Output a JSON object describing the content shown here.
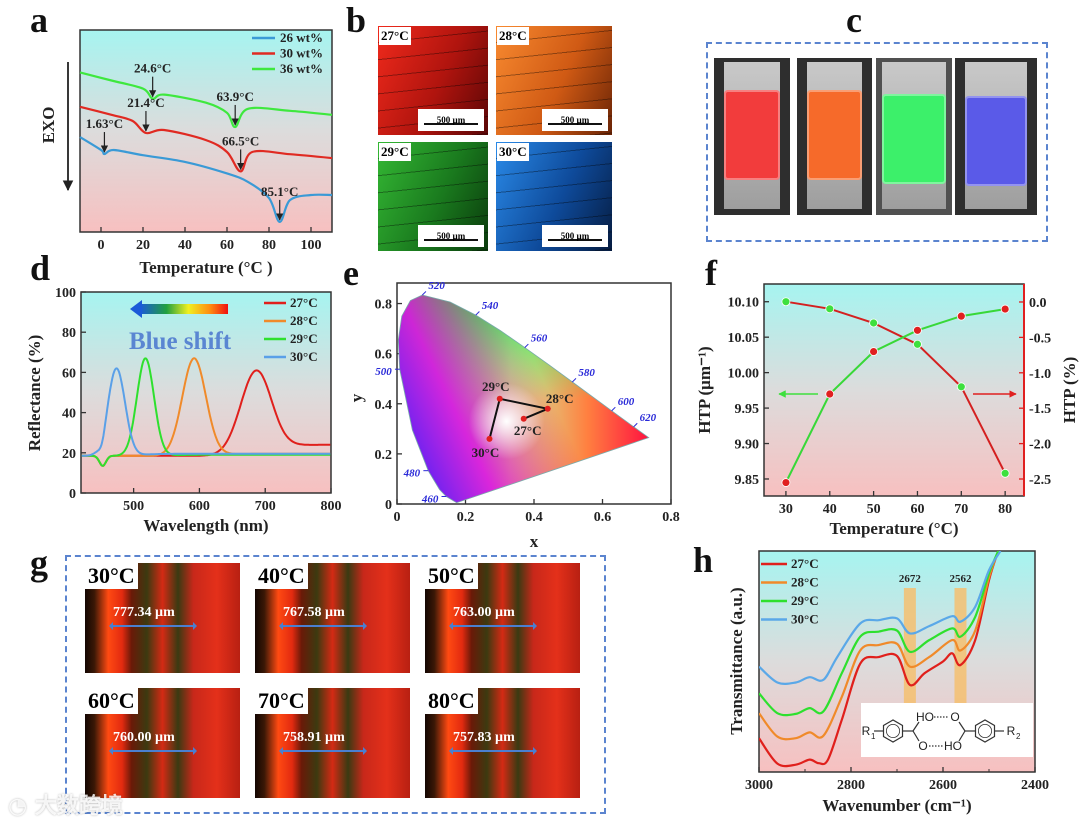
{
  "panel_labels": {
    "a": "a",
    "b": "b",
    "c": "c",
    "d": "d",
    "e": "e",
    "f": "f",
    "g": "g",
    "h": "h"
  },
  "panel_b": {
    "images": [
      {
        "label": "27°C",
        "scale_bar": "500 µm",
        "color": "#e0261c"
      },
      {
        "label": "28°C",
        "scale_bar": "500 µm",
        "color": "#ee7420"
      },
      {
        "label": "29°C",
        "scale_bar": "500 µm",
        "color": "#2aa42a"
      },
      {
        "label": "30°C",
        "scale_bar": "500 µm",
        "color": "#1c78d6"
      }
    ]
  },
  "panel_c": {
    "slides": [
      {
        "color": "#f23c3c"
      },
      {
        "color": "#f66a2a"
      },
      {
        "color": "#3cf06a"
      },
      {
        "color": "#5a5ae8"
      }
    ]
  },
  "panel_g": {
    "images": [
      {
        "label": "30°C",
        "measurement": "777.34 µm"
      },
      {
        "label": "40°C",
        "measurement": "767.58 µm"
      },
      {
        "label": "50°C",
        "measurement": "763.00 µm"
      },
      {
        "label": "60°C",
        "measurement": "760.00 µm"
      },
      {
        "label": "70°C",
        "measurement": "758.91 µm"
      },
      {
        "label": "80°C",
        "measurement": "757.83 µm"
      }
    ]
  },
  "watermark": "大数跨境",
  "chart_data": [
    {
      "panel": "a",
      "type": "line",
      "xlabel": "Temperature (°C )",
      "ylabel": "EXO",
      "xlim": [
        -10,
        110
      ],
      "ylim": [
        0,
        10
      ],
      "xticks": [
        "0",
        "20",
        "40",
        "60",
        "80",
        "100"
      ],
      "xtick_values": [
        0,
        20,
        40,
        60,
        80,
        100
      ],
      "legend": "top-right",
      "series": [
        {
          "name": "26 wt%",
          "color": "#3a9ad6",
          "points": [
            [
              -10,
              4.7
            ],
            [
              0,
              4.06
            ],
            [
              1.63,
              3.86
            ],
            [
              6,
              4.06
            ],
            [
              20,
              3.8
            ],
            [
              40,
              3.47
            ],
            [
              60,
              2.9
            ],
            [
              70,
              2.48
            ],
            [
              80,
              1.68
            ],
            [
              85.1,
              0.5
            ],
            [
              90,
              1.58
            ],
            [
              100,
              1.83
            ],
            [
              110,
              1.83
            ]
          ]
        },
        {
          "name": "30 wt%",
          "color": "#e02a22",
          "points": [
            [
              -10,
              6.2
            ],
            [
              5,
              5.8
            ],
            [
              15,
              5.5
            ],
            [
              21.4,
              4.9
            ],
            [
              30,
              5.05
            ],
            [
              50,
              4.55
            ],
            [
              60,
              3.96
            ],
            [
              66.5,
              3.0
            ],
            [
              72,
              3.96
            ],
            [
              90,
              3.85
            ],
            [
              110,
              3.66
            ]
          ]
        },
        {
          "name": "36 wt%",
          "color": "#3ee83e",
          "points": [
            [
              -10,
              7.9
            ],
            [
              5,
              7.5
            ],
            [
              20,
              7.1
            ],
            [
              24.6,
              6.6
            ],
            [
              30,
              6.8
            ],
            [
              50,
              6.4
            ],
            [
              60,
              5.9
            ],
            [
              63.9,
              5.2
            ],
            [
              70,
              6.1
            ],
            [
              90,
              6.0
            ],
            [
              110,
              5.8
            ]
          ]
        }
      ],
      "annotations": [
        {
          "text": "1.63°C",
          "x": 1.63,
          "y": 3.86
        },
        {
          "text": "21.4°C",
          "x": 21.4,
          "y": 4.9
        },
        {
          "text": "24.6°C",
          "x": 24.6,
          "y": 6.6
        },
        {
          "text": "63.9°C",
          "x": 63.9,
          "y": 5.2
        },
        {
          "text": "66.5°C",
          "x": 66.5,
          "y": 3.0
        },
        {
          "text": "85.1°C",
          "x": 85.1,
          "y": 0.5
        }
      ]
    },
    {
      "panel": "d",
      "type": "line",
      "xlabel": "Wavelength (nm)",
      "ylabel": "Reflectance (%)",
      "xlim": [
        420,
        800
      ],
      "ylim": [
        0,
        100
      ],
      "xticks": [
        "500",
        "600",
        "700",
        "800"
      ],
      "xtick_values": [
        500,
        600,
        700,
        800
      ],
      "yticks": [
        "0",
        "20",
        "40",
        "60",
        "80",
        "100"
      ],
      "ytick_values": [
        0,
        20,
        40,
        60,
        80,
        100
      ],
      "annotation": "Blue shift",
      "legend": "top-right",
      "series": [
        {
          "name": "27°C",
          "color": "#e0201c",
          "peak_nm": 687,
          "peak_pct": 61,
          "width_nm": 24,
          "baseline_pct": 18.5,
          "tail_pct": 24
        },
        {
          "name": "28°C",
          "color": "#f08a2a",
          "peak_nm": 592,
          "peak_pct": 67,
          "width_nm": 18,
          "baseline_pct": 18.5,
          "tail_pct": 19.5
        },
        {
          "name": "29°C",
          "color": "#2ee02e",
          "peak_nm": 518,
          "peak_pct": 67,
          "width_nm": 13,
          "baseline_pct": 18.5,
          "tail_pct": 19
        },
        {
          "name": "30°C",
          "color": "#5aa0e8",
          "peak_nm": 474,
          "peak_pct": 62,
          "width_nm": 13,
          "baseline_pct": 18.5,
          "tail_pct": 19.5
        }
      ]
    },
    {
      "panel": "e",
      "type": "scatter",
      "xlabel": "x",
      "ylabel": "y",
      "xlim": [
        0,
        0.8
      ],
      "ylim": [
        0,
        0.88
      ],
      "xticks": [
        "0",
        "0.2",
        "0.4",
        "0.6",
        "0.8"
      ],
      "xtick_values": [
        0,
        0.2,
        0.4,
        0.6,
        0.8
      ],
      "yticks": [
        "0",
        "0.2",
        "0.4",
        "0.6",
        "0.8"
      ],
      "ytick_values": [
        0,
        0.2,
        0.4,
        0.6,
        0.8
      ],
      "wavelength_labels": [
        {
          "text": "460",
          "x": 0.144,
          "y": 0.03
        },
        {
          "text": "480",
          "x": 0.091,
          "y": 0.133
        },
        {
          "text": "500",
          "x": 0.008,
          "y": 0.538
        },
        {
          "text": "520",
          "x": 0.074,
          "y": 0.834
        },
        {
          "text": "540",
          "x": 0.23,
          "y": 0.754
        },
        {
          "text": "560",
          "x": 0.373,
          "y": 0.624
        },
        {
          "text": "580",
          "x": 0.512,
          "y": 0.487
        },
        {
          "text": "600",
          "x": 0.627,
          "y": 0.372
        },
        {
          "text": "620",
          "x": 0.691,
          "y": 0.308
        }
      ],
      "points": [
        {
          "label": "27°C",
          "x": 0.37,
          "y": 0.34
        },
        {
          "label": "28°C",
          "x": 0.44,
          "y": 0.38
        },
        {
          "label": "29°C",
          "x": 0.3,
          "y": 0.42
        },
        {
          "label": "30°C",
          "x": 0.27,
          "y": 0.26
        }
      ]
    },
    {
      "panel": "f",
      "type": "line",
      "xlabel": "Temperature (°C)",
      "ylabel_left": "HTP (μm⁻¹)",
      "ylabel_right": "HTP (%)",
      "xlim": [
        25,
        84.3
      ],
      "ylim_left": [
        9.826,
        10.125
      ],
      "ylim_right": [
        -2.74,
        0.254
      ],
      "xticks": [
        "30",
        "40",
        "50",
        "60",
        "70",
        "80"
      ],
      "xtick_values": [
        30,
        40,
        50,
        60,
        70,
        80
      ],
      "yticks_left": [
        "9.85",
        "9.90",
        "9.95",
        "10.00",
        "10.05",
        "10.10"
      ],
      "ytick_left_values": [
        9.85,
        9.9,
        9.95,
        10.0,
        10.05,
        10.1
      ],
      "yticks_right": [
        "-2.5",
        "-2.0",
        "-1.5",
        "-1.0",
        "-0.5",
        "0.0"
      ],
      "ytick_right_values": [
        -2.5,
        -2.0,
        -1.5,
        -1.0,
        -0.5,
        0.0
      ],
      "x": [
        30,
        40,
        50,
        60,
        70,
        80
      ],
      "series": [
        {
          "name": "HTP (μm⁻¹)",
          "axis": "left",
          "marker_color": "#3ee03e",
          "line_color": "#d42020",
          "values": [
            10.1,
            10.09,
            10.07,
            10.04,
            9.98,
            9.858
          ]
        },
        {
          "name": "HTP (%)",
          "axis": "right",
          "marker_color": "#e02020",
          "line_color": "#38d838",
          "values": [
            -2.55,
            -1.3,
            -0.7,
            -0.4,
            -0.2,
            -0.1
          ]
        }
      ],
      "axis_color_right": "#e02020"
    },
    {
      "panel": "h",
      "type": "line",
      "xlabel": "Wavenumber (cm⁻¹)",
      "ylabel": "Transmittance (a.u.)",
      "xlim": [
        3000,
        2400
      ],
      "ylim": [
        0,
        100
      ],
      "xticks": [
        "3000",
        "2800",
        "2600",
        "2400"
      ],
      "xtick_values": [
        3000,
        2800,
        2600,
        2400
      ],
      "bands": [
        {
          "label": "2672",
          "x": 2672
        },
        {
          "label": "2562",
          "x": 2562
        }
      ],
      "inset": {
        "r1": "R",
        "r1_sub": "1",
        "r2": "R",
        "r2_sub": "2",
        "ho_top": "HO",
        "o_top": "O",
        "o_bottom": "O",
        "ho_bottom": "HO"
      },
      "legend": "top-left",
      "series": [
        {
          "name": "27°C",
          "color": "#e0201c",
          "points": [
            [
              3000,
              15.3
            ],
            [
              2960,
              3.8
            ],
            [
              2920,
              3.3
            ],
            [
              2890,
              5.6
            ],
            [
              2870,
              4
            ],
            [
              2850,
              5.6
            ],
            [
              2820,
              23.6
            ],
            [
              2780,
              49
            ],
            [
              2740,
              52
            ],
            [
              2700,
              52.5
            ],
            [
              2672,
              39.4
            ],
            [
              2640,
              44.7
            ],
            [
              2600,
              50
            ],
            [
              2580,
              53.7
            ],
            [
              2562,
              48.4
            ],
            [
              2530,
              59.7
            ],
            [
              2500,
              86.8
            ],
            [
              2480,
              100
            ]
          ]
        },
        {
          "name": "28°C",
          "color": "#f08a2a",
          "points": [
            [
              3000,
              26.6
            ],
            [
              2960,
              16
            ],
            [
              2920,
              15.3
            ],
            [
              2890,
              17.9
            ],
            [
              2860,
              16.4
            ],
            [
              2820,
              34
            ],
            [
              2780,
              55
            ],
            [
              2740,
              57.4
            ],
            [
              2700,
              58
            ],
            [
              2672,
              47.7
            ],
            [
              2630,
              52
            ],
            [
              2580,
              59.7
            ],
            [
              2562,
              55
            ],
            [
              2530,
              64
            ],
            [
              2500,
              88
            ],
            [
              2480,
              100
            ]
          ]
        },
        {
          "name": "29°C",
          "color": "#2ee02e",
          "points": [
            [
              3000,
              35.6
            ],
            [
              2960,
              26.6
            ],
            [
              2920,
              26.3
            ],
            [
              2890,
              28.9
            ],
            [
              2860,
              27.4
            ],
            [
              2820,
              44.7
            ],
            [
              2780,
              61.2
            ],
            [
              2740,
              63.5
            ],
            [
              2700,
              64
            ],
            [
              2672,
              54.4
            ],
            [
              2630,
              59.7
            ],
            [
              2580,
              65
            ],
            [
              2562,
              61.2
            ],
            [
              2530,
              70.2
            ],
            [
              2500,
              89.8
            ],
            [
              2480,
              100
            ]
          ]
        },
        {
          "name": "30°C",
          "color": "#5aa8e8",
          "points": [
            [
              3000,
              47.7
            ],
            [
              2960,
              40.5
            ],
            [
              2920,
              40.5
            ],
            [
              2890,
              42.9
            ],
            [
              2860,
              41.7
            ],
            [
              2830,
              52
            ],
            [
              2780,
              67.2
            ],
            [
              2740,
              68.7
            ],
            [
              2700,
              69.5
            ],
            [
              2672,
              62.7
            ],
            [
              2630,
              66
            ],
            [
              2580,
              70.5
            ],
            [
              2562,
              68
            ],
            [
              2530,
              74.7
            ],
            [
              2500,
              91.3
            ],
            [
              2475,
              100
            ]
          ]
        }
      ]
    }
  ]
}
